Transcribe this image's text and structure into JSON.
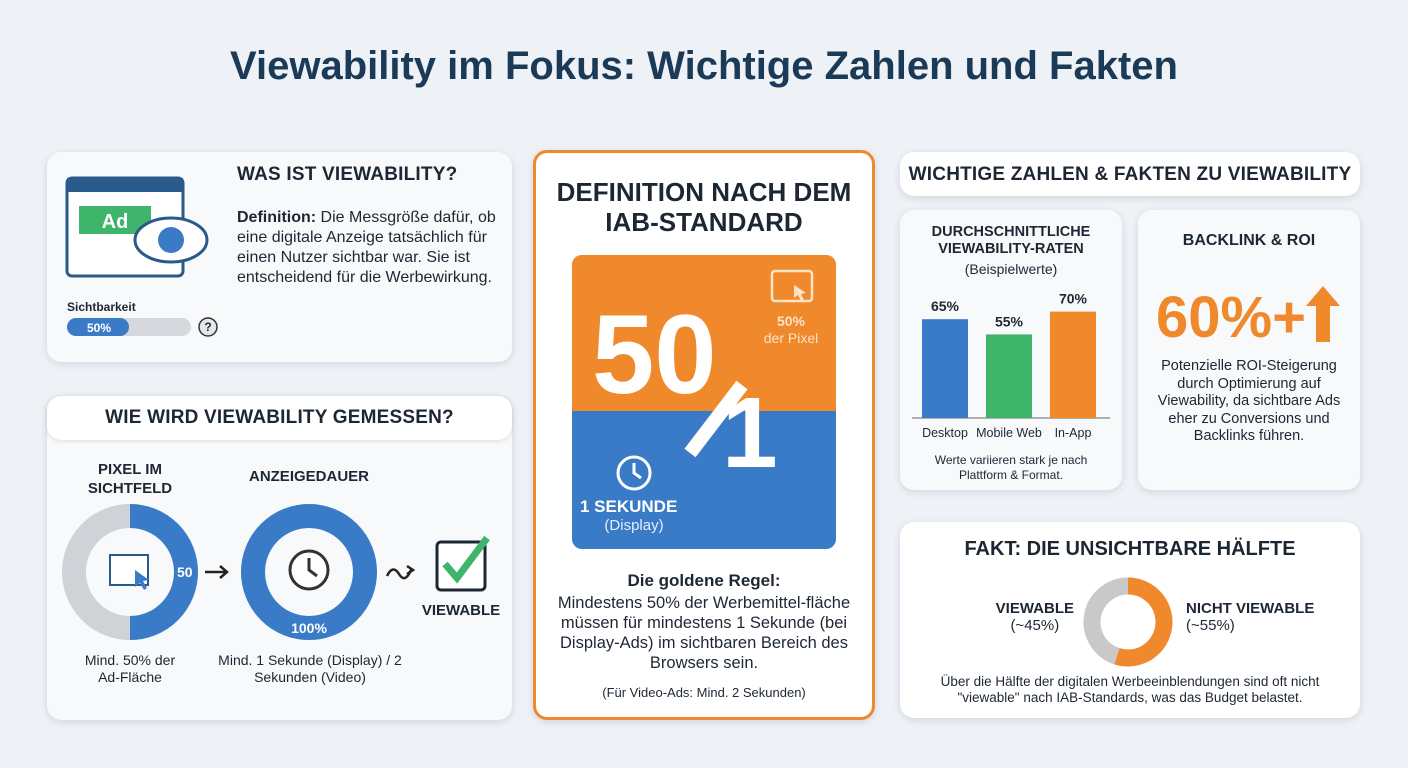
{
  "title": "Viewability im Fokus: Wichtige Zahlen und Fakten",
  "definition_card": {
    "heading": "WAS IST VIEWABILITY?",
    "icon_label": "Ad",
    "term": "Definition:",
    "text": "Die Messgröße dafür, ob eine digitale Anzeige tatsächlich für einen Nutzer sichtbar war. Sie ist entscheidend für die Werbewirkung.",
    "meter_label": "Sichtbarkeit",
    "meter_value": 50,
    "meter_value_label": "50%",
    "help": "?"
  },
  "measure_card": {
    "heading": "WIE WIRD VIEWABILITY GEMESSEN?",
    "steps": [
      {
        "title": "PIXEL IM SICHTFELD",
        "value": 50,
        "value_label": "50",
        "caption": "Mind. 50% der Ad-Fläche"
      },
      {
        "title": "ANZEIGEDAUER",
        "value": 100,
        "value_label": "100%",
        "caption": "Mind. 1 Sekunde (Display) / 2 Sekunden (Video)"
      }
    ],
    "result": "VIEWABLE"
  },
  "iab_card": {
    "heading": "DEFINITION NACH DEM IAB-STANDARD",
    "big_top": "50",
    "big_bottom": "1",
    "pixel_value": "50%",
    "pixel_label": "der Pixel",
    "time_label": "1 SEKUNDE",
    "time_sub": "(Display)",
    "rule_title": "Die goldene Regel:",
    "rule_text": "Mindestens 50% der Werbemittel-fläche müssen für mindestens 1 Sekunde (bei Display-Ads) im sichtbaren Bereich des Browsers sein.",
    "note": "(Für Video-Ads: Mind. 2 Sekunden)"
  },
  "facts_heading": "WICHTIGE ZAHLEN & FAKTEN ZU VIEWABILITY",
  "chart_data": {
    "type": "bar",
    "title": "DURCHSCHNITTLICHE VIEWABILITY-RATEN",
    "subtitle": "(Beispielwerte)",
    "categories": [
      "Desktop",
      "Mobile Web",
      "In-App"
    ],
    "values": [
      65,
      55,
      70
    ],
    "value_labels": [
      "65%",
      "55%",
      "70%"
    ],
    "colors": [
      "#3a7bc8",
      "#3fb56b",
      "#f0892c"
    ],
    "note": "Werte variieren stark je nach Plattform & Format."
  },
  "roi_card": {
    "heading": "BACKLINK & ROI",
    "value": "60%+",
    "text": "Potenzielle ROI-Steigerung durch Optimierung auf Viewability, da sichtbare Ads eher zu Conversions und Backlinks führen."
  },
  "fact_card": {
    "heading": "FAKT: DIE UNSICHTBARE HÄLFTE",
    "segments": [
      {
        "name": "VIEWABLE",
        "value": 45,
        "label": "(~45%)",
        "color": "#c9c9c9"
      },
      {
        "name": "NICHT VIEWABLE",
        "value": 55,
        "label": "(~55%)",
        "color": "#f0892c"
      }
    ],
    "text": "Über die Hälfte der digitalen Werbeeinblendungen sind oft nicht \"viewable\" nach IAB-Standards, was das Budget belastet."
  }
}
